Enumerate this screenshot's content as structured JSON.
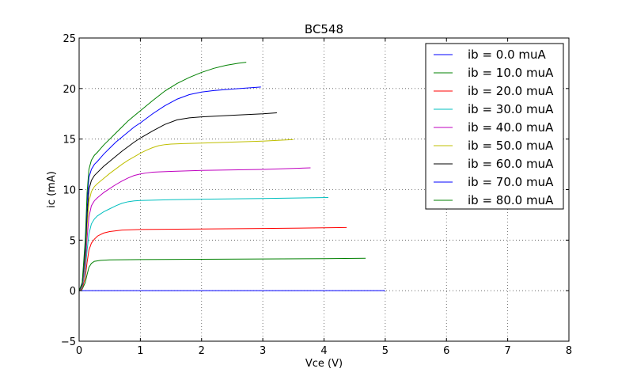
{
  "chart_data": {
    "type": "line",
    "title": "BC548",
    "xlabel": "Vce (V)",
    "ylabel": "ic (mA)",
    "xlim": [
      0,
      8
    ],
    "ylim": [
      -5,
      25
    ],
    "xticks": [
      "0",
      "1",
      "2",
      "3",
      "4",
      "5",
      "6",
      "7",
      "8"
    ],
    "yticks": [
      "−5",
      "0",
      "5",
      "10",
      "15",
      "20",
      "25"
    ],
    "grid": true,
    "legend_position": "top-right",
    "series": [
      {
        "name": "ib = 0.0 muA",
        "color": "#0000ff",
        "x": [
          0,
          1,
          2,
          3,
          4,
          5
        ],
        "y": [
          0,
          0,
          0,
          0,
          0,
          0
        ]
      },
      {
        "name": "ib = 10.0 muA",
        "color": "#008000",
        "x": [
          0,
          0.05,
          0.1,
          0.13,
          0.16,
          0.2,
          0.25,
          0.35,
          0.5,
          1,
          2,
          3,
          4,
          4.68
        ],
        "y": [
          0,
          0.15,
          0.8,
          1.6,
          2.3,
          2.7,
          2.9,
          3.0,
          3.05,
          3.08,
          3.11,
          3.14,
          3.17,
          3.2
        ]
      },
      {
        "name": "ib = 20.0 muA",
        "color": "#ff0000",
        "x": [
          0,
          0.05,
          0.1,
          0.13,
          0.16,
          0.2,
          0.25,
          0.3,
          0.4,
          0.5,
          0.7,
          1,
          2,
          3,
          4,
          4.37
        ],
        "y": [
          0,
          0.2,
          1.3,
          2.8,
          4.0,
          4.7,
          5.1,
          5.4,
          5.7,
          5.85,
          6.0,
          6.05,
          6.1,
          6.15,
          6.22,
          6.25
        ]
      },
      {
        "name": "ib = 30.0 muA",
        "color": "#00bfbf",
        "x": [
          0,
          0.05,
          0.1,
          0.13,
          0.16,
          0.2,
          0.25,
          0.3,
          0.4,
          0.5,
          0.6,
          0.7,
          0.8,
          0.9,
          1,
          1.5,
          2,
          3,
          4.07
        ],
        "y": [
          0,
          0.3,
          2.0,
          4.0,
          5.6,
          6.6,
          7.1,
          7.4,
          7.8,
          8.1,
          8.4,
          8.65,
          8.8,
          8.88,
          8.92,
          9.0,
          9.05,
          9.12,
          9.22
        ]
      },
      {
        "name": "ib = 40.0 muA",
        "color": "#bf00bf",
        "x": [
          0,
          0.05,
          0.1,
          0.13,
          0.16,
          0.2,
          0.25,
          0.3,
          0.4,
          0.5,
          0.6,
          0.7,
          0.8,
          0.9,
          1,
          1.1,
          1.2,
          1.3,
          1.5,
          2,
          3,
          3.78
        ],
        "y": [
          0,
          0.4,
          2.6,
          5.2,
          7.3,
          8.4,
          8.9,
          9.2,
          9.7,
          10.1,
          10.5,
          10.85,
          11.15,
          11.4,
          11.55,
          11.65,
          11.72,
          11.75,
          11.8,
          11.9,
          12.0,
          12.15
        ]
      },
      {
        "name": "ib = 50.0 muA",
        "color": "#bfbf00",
        "x": [
          0,
          0.05,
          0.1,
          0.13,
          0.16,
          0.2,
          0.25,
          0.3,
          0.4,
          0.5,
          0.6,
          0.7,
          0.8,
          0.9,
          1,
          1.1,
          1.2,
          1.3,
          1.4,
          1.5,
          1.7,
          2,
          3,
          3.5
        ],
        "y": [
          0,
          0.5,
          3.2,
          6.4,
          8.8,
          9.8,
          10.3,
          10.6,
          11.1,
          11.6,
          12.05,
          12.5,
          12.9,
          13.25,
          13.6,
          13.9,
          14.15,
          14.35,
          14.45,
          14.5,
          14.55,
          14.6,
          14.8,
          14.95
        ]
      },
      {
        "name": "ib = 60.0 muA",
        "color": "#000000",
        "x": [
          0,
          0.05,
          0.1,
          0.13,
          0.16,
          0.2,
          0.25,
          0.3,
          0.4,
          0.5,
          0.6,
          0.7,
          0.8,
          0.9,
          1,
          1.2,
          1.4,
          1.6,
          1.8,
          2,
          2.5,
          3,
          3.23
        ],
        "y": [
          0,
          0.6,
          3.8,
          7.5,
          10.0,
          10.9,
          11.4,
          11.7,
          12.3,
          12.8,
          13.3,
          13.8,
          14.25,
          14.7,
          15.1,
          15.8,
          16.45,
          16.9,
          17.1,
          17.2,
          17.35,
          17.5,
          17.6
        ]
      },
      {
        "name": "ib = 70.0 muA",
        "color": "#0000ff",
        "x": [
          0,
          0.05,
          0.1,
          0.13,
          0.16,
          0.2,
          0.25,
          0.3,
          0.4,
          0.5,
          0.6,
          0.7,
          0.8,
          0.9,
          1,
          1.2,
          1.4,
          1.6,
          1.8,
          2,
          2.2,
          2.5,
          2.97
        ],
        "y": [
          0,
          0.7,
          4.4,
          8.6,
          11.2,
          12.0,
          12.5,
          12.8,
          13.5,
          14.1,
          14.7,
          15.2,
          15.7,
          16.2,
          16.6,
          17.5,
          18.3,
          18.95,
          19.4,
          19.65,
          19.8,
          19.95,
          20.15
        ]
      },
      {
        "name": "ib = 80.0 muA",
        "color": "#008000",
        "x": [
          0,
          0.05,
          0.1,
          0.13,
          0.16,
          0.2,
          0.25,
          0.3,
          0.4,
          0.5,
          0.6,
          0.7,
          0.8,
          0.9,
          1,
          1.2,
          1.4,
          1.6,
          1.8,
          2,
          2.2,
          2.4,
          2.6,
          2.73
        ],
        "y": [
          0,
          0.8,
          5.0,
          9.7,
          12.0,
          12.9,
          13.4,
          13.7,
          14.4,
          15.0,
          15.6,
          16.2,
          16.8,
          17.3,
          17.8,
          18.8,
          19.75,
          20.5,
          21.1,
          21.6,
          22.0,
          22.3,
          22.5,
          22.6
        ]
      }
    ]
  }
}
